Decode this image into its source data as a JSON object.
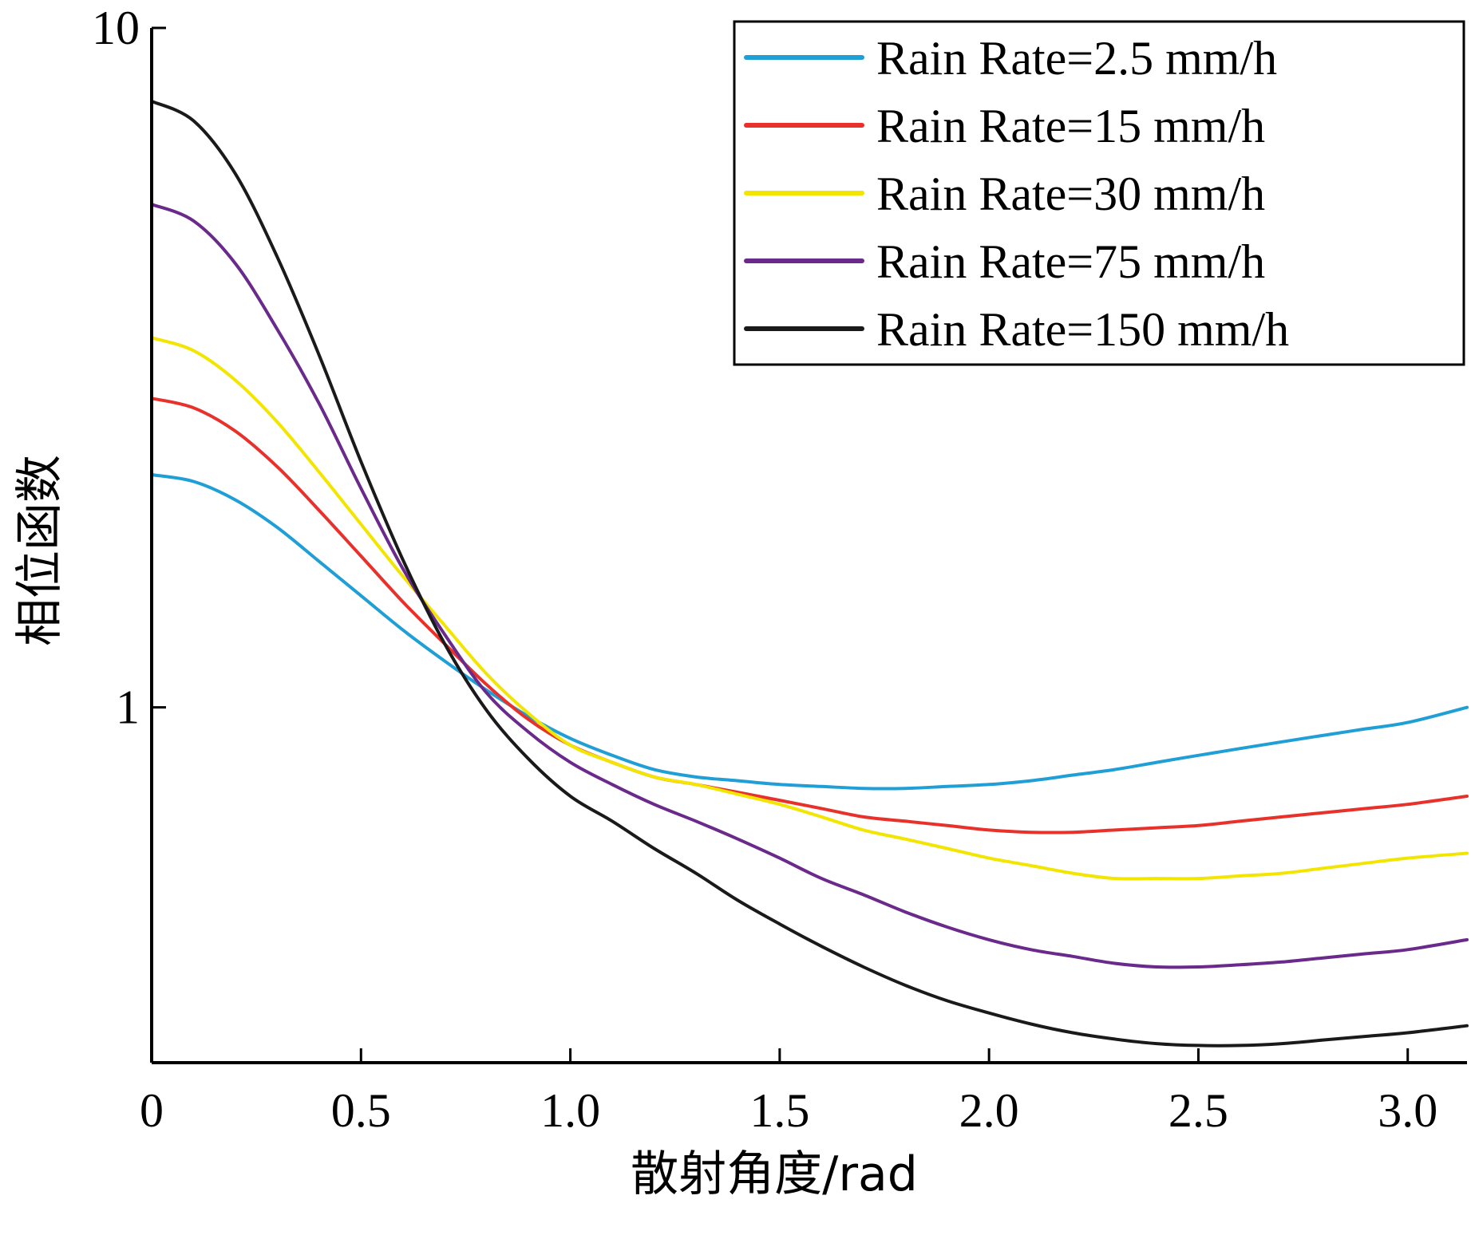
{
  "chart_data": {
    "type": "line",
    "title": "",
    "xlabel": "散射角度/rad",
    "ylabel": "相位函数",
    "xlim": [
      0,
      3.1416
    ],
    "ylim": [
      0.3,
      10
    ],
    "yscale": "log",
    "x_ticks": [
      0,
      0.5,
      1.0,
      1.5,
      2.0,
      2.5,
      3.0
    ],
    "x_tick_labels": [
      "0",
      "0.5",
      "1.0",
      "1.5",
      "2.0",
      "2.5",
      "3.0"
    ],
    "y_ticks": [
      1,
      10
    ],
    "y_tick_labels": [
      "1",
      "10"
    ],
    "grid": false,
    "legend_position": "top-right",
    "x": [
      0,
      0.1,
      0.2,
      0.3,
      0.4,
      0.5,
      0.6,
      0.7,
      0.8,
      0.9,
      1.0,
      1.1,
      1.2,
      1.3,
      1.4,
      1.5,
      1.6,
      1.7,
      1.8,
      1.9,
      2.0,
      2.1,
      2.2,
      2.3,
      2.4,
      2.5,
      2.6,
      2.7,
      2.8,
      2.9,
      3.0,
      3.1416
    ],
    "series": [
      {
        "name": "Rain Rate=2.5 mm/h",
        "color": "#1f9fd6",
        "values": [
          2.2,
          2.15,
          2.02,
          1.84,
          1.64,
          1.46,
          1.3,
          1.17,
          1.06,
          0.97,
          0.9,
          0.85,
          0.81,
          0.79,
          0.78,
          0.77,
          0.765,
          0.76,
          0.76,
          0.765,
          0.77,
          0.78,
          0.795,
          0.81,
          0.83,
          0.85,
          0.87,
          0.89,
          0.91,
          0.93,
          0.95,
          1.0
        ]
      },
      {
        "name": "Rain Rate=15 mm/h",
        "color": "#e8312a",
        "values": [
          2.85,
          2.76,
          2.55,
          2.26,
          1.95,
          1.67,
          1.43,
          1.24,
          1.08,
          0.96,
          0.88,
          0.83,
          0.79,
          0.77,
          0.75,
          0.73,
          0.71,
          0.69,
          0.68,
          0.67,
          0.66,
          0.655,
          0.655,
          0.66,
          0.665,
          0.67,
          0.68,
          0.69,
          0.7,
          0.71,
          0.72,
          0.74
        ]
      },
      {
        "name": "Rain Rate=30 mm/h",
        "color": "#f2e600",
        "values": [
          3.5,
          3.35,
          3.03,
          2.63,
          2.22,
          1.86,
          1.56,
          1.32,
          1.12,
          0.98,
          0.88,
          0.83,
          0.79,
          0.77,
          0.745,
          0.72,
          0.69,
          0.66,
          0.64,
          0.62,
          0.6,
          0.585,
          0.57,
          0.56,
          0.56,
          0.56,
          0.565,
          0.57,
          0.58,
          0.59,
          0.6,
          0.61
        ]
      },
      {
        "name": "Rain Rate=75 mm/h",
        "color": "#6a2a8c",
        "values": [
          5.5,
          5.2,
          4.5,
          3.6,
          2.8,
          2.1,
          1.6,
          1.28,
          1.05,
          0.92,
          0.83,
          0.77,
          0.72,
          0.68,
          0.64,
          0.6,
          0.56,
          0.53,
          0.5,
          0.475,
          0.455,
          0.44,
          0.43,
          0.42,
          0.415,
          0.415,
          0.418,
          0.422,
          0.428,
          0.434,
          0.44,
          0.455
        ]
      },
      {
        "name": "Rain Rate=150 mm/h",
        "color": "#1a1a1a",
        "values": [
          7.8,
          7.3,
          6.1,
          4.6,
          3.3,
          2.3,
          1.65,
          1.24,
          0.99,
          0.84,
          0.74,
          0.68,
          0.62,
          0.57,
          0.52,
          0.48,
          0.445,
          0.415,
          0.39,
          0.37,
          0.355,
          0.342,
          0.332,
          0.325,
          0.32,
          0.318,
          0.318,
          0.32,
          0.324,
          0.328,
          0.332,
          0.34
        ]
      }
    ]
  }
}
